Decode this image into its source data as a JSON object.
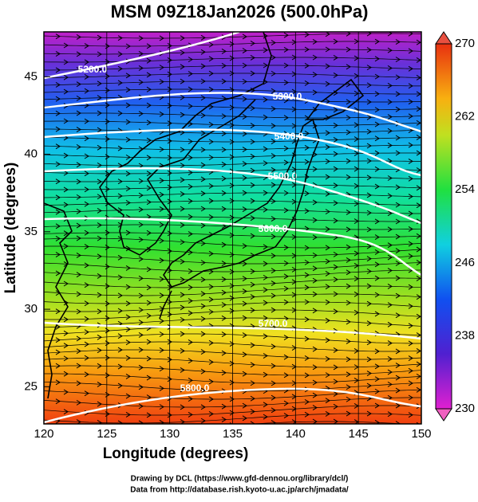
{
  "chart_data": {
    "type": "map",
    "title": "MSM 09Z18Jan2026 (500.0hPa)",
    "x_label": "Longitude (degrees)",
    "y_label": "Latitude  (degrees)",
    "xlim": [
      120,
      150
    ],
    "ylim": [
      22.6,
      47.9
    ],
    "xticks": [
      120,
      125,
      130,
      135,
      140,
      145,
      150
    ],
    "yticks": [
      25,
      30,
      35,
      40,
      45
    ],
    "colorbar": {
      "lim": [
        230,
        270
      ],
      "ticks": [
        230,
        238,
        246,
        254,
        262,
        270
      ]
    },
    "contours": {
      "values": [
        5200,
        5300,
        5400,
        5500,
        5600,
        5700,
        5800
      ],
      "value_labels": [
        "5200.0",
        "5300.0",
        "5400.0",
        "5500.0",
        "5600.0",
        "5700.0",
        "5800.0"
      ],
      "color": "#ffffff"
    },
    "footer": [
      "Drawing by DCL (https://www.gfd-dennou.org/library/dcl/)",
      "Data from http://database.rish.kyoto-u.ac.jp/arch/jmadata/"
    ]
  }
}
